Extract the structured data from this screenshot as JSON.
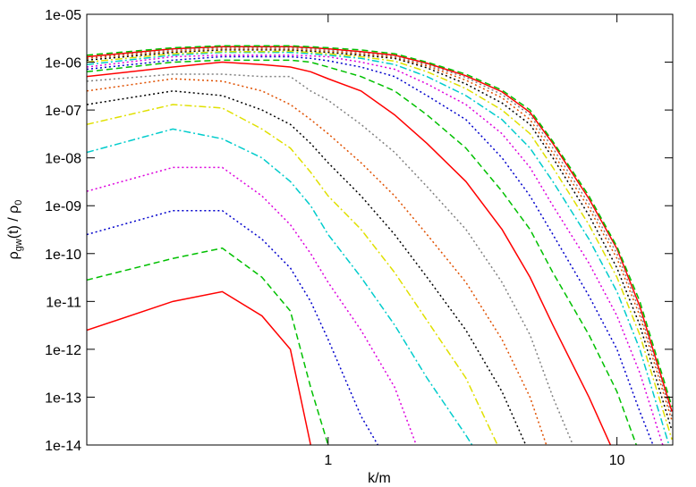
{
  "chart_data": {
    "type": "line",
    "xlog": true,
    "ylog": true,
    "xlabel": "k/m",
    "ylabel_parts": [
      "ρ",
      "gw",
      "(t) / ρ",
      "0"
    ],
    "xlim": [
      0.146,
      15.6
    ],
    "ylim": [
      1e-14,
      1e-05
    ],
    "xticks": [
      1,
      10
    ],
    "yticks": [
      {
        "value": 1e-05,
        "label": "1e-05"
      },
      {
        "value": 1e-06,
        "label": "1e-06"
      },
      {
        "value": 1e-07,
        "label": "1e-07"
      },
      {
        "value": 1e-08,
        "label": "1e-08"
      },
      {
        "value": 1e-09,
        "label": "1e-09"
      },
      {
        "value": 1e-10,
        "label": "1e-10"
      },
      {
        "value": 1e-11,
        "label": "1e-11"
      },
      {
        "value": 1e-12,
        "label": "1e-12"
      },
      {
        "value": 1e-13,
        "label": "1e-13"
      },
      {
        "value": 1e-14,
        "label": "1e-14"
      }
    ],
    "x": [
      0.146,
      0.29,
      0.43,
      0.59,
      0.74,
      0.87,
      1.0,
      1.3,
      1.7,
      2.2,
      3,
      4,
      5,
      6,
      8,
      10,
      12,
      15.5
    ],
    "series": [
      {
        "color": "#ff0000",
        "dash": "solid",
        "values": [
          2.5e-12,
          1e-11,
          1.6e-11,
          5e-12,
          1e-12,
          1e-14,
          null,
          null,
          null,
          null,
          null,
          null,
          null,
          null,
          null,
          null,
          null,
          null
        ]
      },
      {
        "color": "#00c000",
        "dash": "dashed",
        "values": [
          2.8e-11,
          7.9e-11,
          1.3e-10,
          3.2e-11,
          6.3e-12,
          1.6e-13,
          1e-14,
          null,
          null,
          null,
          null,
          null,
          null,
          null,
          null,
          null,
          null,
          null
        ]
      },
      {
        "color": "#0000cc",
        "dash": "dotted",
        "values": [
          2.5e-10,
          7.9e-10,
          7.9e-10,
          2e-10,
          5e-11,
          1e-11,
          1.6e-12,
          4e-14,
          2.5e-15,
          null,
          null,
          null,
          null,
          null,
          null,
          null,
          null,
          null
        ]
      },
      {
        "color": "#dd00dd",
        "dash": "dotted",
        "values": [
          2e-09,
          6.3e-09,
          6.3e-09,
          1.6e-09,
          4e-10,
          1e-10,
          2.5e-11,
          2.5e-12,
          1.6e-13,
          2.5e-15,
          null,
          null,
          null,
          null,
          null,
          null,
          null,
          null
        ]
      },
      {
        "color": "#00cccc",
        "dash": "dashdot",
        "values": [
          1.3e-08,
          4e-08,
          2.5e-08,
          1e-08,
          3.2e-09,
          1e-09,
          2.5e-10,
          3.2e-11,
          3.2e-12,
          2.5e-13,
          1.6e-14,
          1e-15,
          null,
          null,
          null,
          null,
          null,
          null
        ]
      },
      {
        "color": "#e0e000",
        "dash": "dashdot",
        "values": [
          5e-08,
          1.3e-07,
          1.1e-07,
          4e-08,
          1.6e-08,
          5e-09,
          1.6e-09,
          3.2e-10,
          4e-11,
          4e-12,
          2.5e-13,
          6.3e-15,
          null,
          null,
          null,
          null,
          null,
          null
        ]
      },
      {
        "color": "#000000",
        "dash": "dotted",
        "values": [
          1.3e-07,
          2.5e-07,
          2e-07,
          1e-07,
          5e-08,
          2e-08,
          7.9e-09,
          1.6e-09,
          2.5e-10,
          3.2e-11,
          2.5e-12,
          1.3e-13,
          6.3e-15,
          null,
          null,
          null,
          null,
          null
        ]
      },
      {
        "color": "#e05000",
        "dash": "dotted",
        "values": [
          2.5e-07,
          4.5e-07,
          4e-07,
          2.5e-07,
          1.3e-07,
          6.3e-08,
          3.2e-08,
          7.9e-09,
          1.6e-09,
          2.5e-10,
          2.5e-11,
          1.6e-12,
          1e-13,
          4e-15,
          null,
          null,
          null,
          null
        ]
      },
      {
        "color": "#808080",
        "dash": "dotted",
        "values": [
          4e-07,
          5.6e-07,
          5.6e-07,
          5e-07,
          5e-07,
          2.5e-07,
          1.6e-07,
          5e-08,
          1.3e-08,
          2.5e-09,
          3.2e-10,
          2.5e-11,
          2e-12,
          1e-13,
          1.6e-15,
          null,
          null,
          null
        ]
      },
      {
        "color": "#ff0000",
        "dash": "solid",
        "values": [
          5e-07,
          7.9e-07,
          1e-06,
          8.9e-07,
          7.9e-07,
          6.3e-07,
          4.5e-07,
          2.5e-07,
          7.9e-08,
          2e-08,
          3.2e-09,
          3.2e-10,
          3.2e-11,
          3.2e-12,
          1e-13,
          5e-15,
          null,
          null
        ]
      },
      {
        "color": "#00c000",
        "dash": "dashed",
        "values": [
          6.3e-07,
          1e-06,
          1.1e-06,
          1.1e-06,
          1.1e-06,
          1e-06,
          7.9e-07,
          5e-07,
          2.5e-07,
          7.9e-08,
          1.6e-08,
          2e-09,
          3.2e-10,
          4e-11,
          2e-12,
          1.3e-13,
          6.3e-15,
          null
        ]
      },
      {
        "color": "#0000cc",
        "dash": "dotted",
        "values": [
          7.1e-07,
          1.1e-06,
          1.3e-06,
          1.3e-06,
          1.3e-06,
          1.2e-06,
          1.07e-06,
          7.9e-07,
          5e-07,
          2e-07,
          6.3e-08,
          1e-08,
          1.6e-09,
          2.5e-10,
          1.3e-11,
          1e-12,
          5e-14,
          1e-15
        ]
      },
      {
        "color": "#dd00dd",
        "dash": "dotted",
        "values": [
          7.9e-07,
          1.3e-06,
          1.4e-06,
          1.4e-06,
          1.4e-06,
          1.35e-06,
          1.3e-06,
          1e-06,
          7.1e-07,
          3.5e-07,
          1.3e-07,
          3.2e-08,
          6.3e-09,
          1e-09,
          6.3e-11,
          5e-12,
          3.2e-13,
          2.5e-15
        ]
      },
      {
        "color": "#00cccc",
        "dash": "dashdot",
        "values": [
          8.9e-07,
          1.4e-06,
          1.6e-06,
          1.6e-06,
          1.6e-06,
          1.5e-06,
          1.4e-06,
          1.2e-06,
          8.9e-07,
          5e-07,
          2e-07,
          6.3e-08,
          1.6e-08,
          3.2e-09,
          2e-10,
          1.6e-11,
          1e-12,
          6.3e-15
        ]
      },
      {
        "color": "#e0e000",
        "dash": "dashdot",
        "values": [
          1e-06,
          1.5e-06,
          1.66e-06,
          1.66e-06,
          1.7e-06,
          1.6e-06,
          1.5e-06,
          1.3e-06,
          1.05e-06,
          6.3e-07,
          2.8e-07,
          1e-07,
          3.2e-08,
          6.3e-09,
          4e-10,
          3.2e-11,
          2e-12,
          1.3e-14
        ]
      },
      {
        "color": "#000000",
        "dash": "dotted",
        "values": [
          1.1e-06,
          1.6e-06,
          1.8e-06,
          1.8e-06,
          1.8e-06,
          1.7e-06,
          1.6e-06,
          1.4e-06,
          1.2e-06,
          7.6e-07,
          3.5e-07,
          1.4e-07,
          5e-08,
          1e-08,
          6.3e-10,
          5e-11,
          3.2e-12,
          2e-14
        ]
      },
      {
        "color": "#e05000",
        "dash": "dotted",
        "values": [
          1.2e-06,
          1.7e-06,
          1.9e-06,
          1.9e-06,
          1.9e-06,
          1.8e-06,
          1.7e-06,
          1.5e-06,
          1.26e-06,
          8.3e-07,
          4.2e-07,
          1.8e-07,
          6.3e-08,
          1.26e-08,
          8.9e-10,
          7.9e-11,
          5e-12,
          3.2e-14
        ]
      },
      {
        "color": "#808080",
        "dash": "dotted",
        "values": [
          1.26e-06,
          1.8e-06,
          2e-06,
          2e-06,
          2e-06,
          1.9e-06,
          1.8e-06,
          1.6e-06,
          1.3e-06,
          8.9e-07,
          4.8e-07,
          2.1e-07,
          7.9e-08,
          1.6e-08,
          1.1e-09,
          1e-10,
          6.3e-12,
          4e-14
        ]
      },
      {
        "color": "#ff0000",
        "dash": "solid",
        "values": [
          1.3e-06,
          1.9e-06,
          2.1e-06,
          2.1e-06,
          2.1e-06,
          2e-06,
          1.9e-06,
          1.66e-06,
          1.4e-06,
          9.5e-07,
          5.2e-07,
          2.4e-07,
          8.9e-08,
          2e-08,
          1.4e-09,
          1.26e-10,
          7.9e-12,
          5e-14
        ]
      },
      {
        "color": "#00c000",
        "dash": "dashed",
        "values": [
          1.4e-06,
          2e-06,
          2.2e-06,
          2.2e-06,
          2.2e-06,
          2.1e-06,
          2e-06,
          1.8e-06,
          1.5e-06,
          1e-06,
          5.6e-07,
          2.6e-07,
          1e-07,
          2.2e-08,
          1.6e-09,
          1.4e-10,
          1e-11,
          6.3e-14
        ]
      }
    ]
  }
}
